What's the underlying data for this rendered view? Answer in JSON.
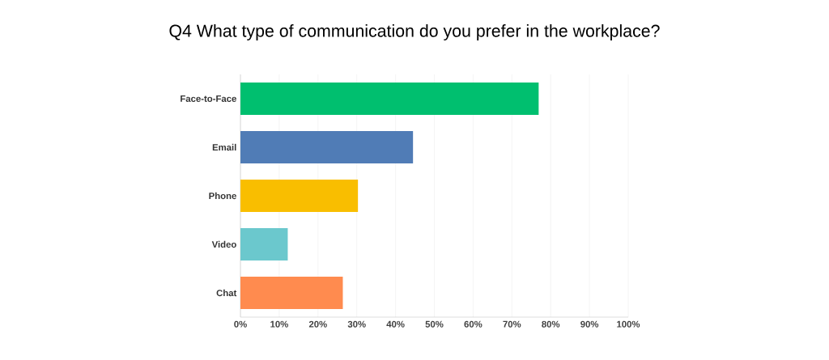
{
  "chart_data": {
    "type": "bar",
    "orientation": "horizontal",
    "title": "Q4 What type of communication do you prefer in the workplace?",
    "categories": [
      "Face-to-Face",
      "Email",
      "Phone",
      "Video",
      "Chat"
    ],
    "values": [
      76.9,
      44.5,
      30.3,
      12.2,
      26.4
    ],
    "colors": [
      "#00bf6f",
      "#507cb6",
      "#f9be00",
      "#6bc8cd",
      "#ff8b4f"
    ],
    "xlim": [
      0,
      100
    ],
    "xticks": [
      {
        "value": 0,
        "label": "0%"
      },
      {
        "value": 10,
        "label": "10%"
      },
      {
        "value": 20,
        "label": "20%"
      },
      {
        "value": 30,
        "label": "30%"
      },
      {
        "value": 40,
        "label": "40%"
      },
      {
        "value": 50,
        "label": "50%"
      },
      {
        "value": 60,
        "label": "60%"
      },
      {
        "value": 70,
        "label": "70%"
      },
      {
        "value": 80,
        "label": "80%"
      },
      {
        "value": 90,
        "label": "90%"
      },
      {
        "value": 100,
        "label": "100%"
      }
    ],
    "grid": "x"
  }
}
